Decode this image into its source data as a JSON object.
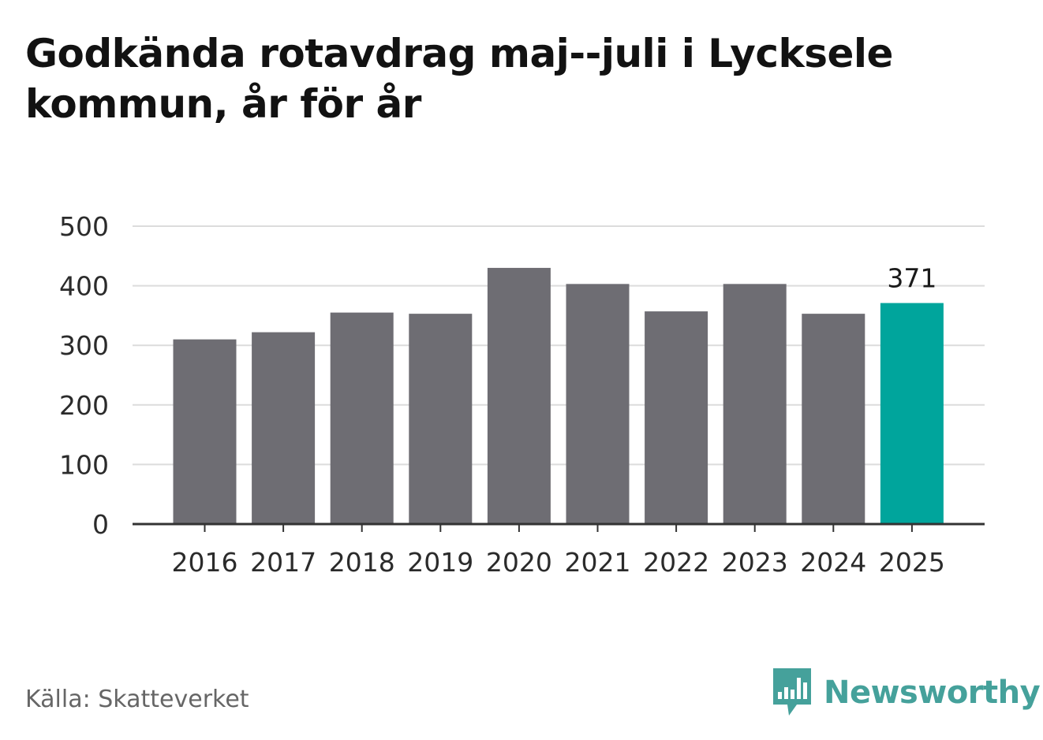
{
  "title": "Godkända rotavdrag maj--juli i Lycksele kommun, år för år",
  "source": "Källa: Skatteverket",
  "brand": {
    "name": "Newsworthy",
    "icon": "newsworthy-logo-icon",
    "color": "#45a19b"
  },
  "colors": {
    "bar": "#6e6d73",
    "highlight": "#00a59c",
    "grid": "#dcdcdc",
    "axis": "#333333"
  },
  "chart_data": {
    "type": "bar",
    "title": "Godkända rotavdrag maj--juli i Lycksele kommun, år för år",
    "xlabel": "",
    "ylabel": "",
    "categories": [
      "2016",
      "2017",
      "2018",
      "2019",
      "2020",
      "2021",
      "2022",
      "2023",
      "2024",
      "2025"
    ],
    "values": [
      310,
      322,
      355,
      353,
      430,
      403,
      357,
      403,
      353,
      371
    ],
    "ylim": [
      0,
      500
    ],
    "yticks": [
      "0",
      "100",
      "200",
      "300",
      "400",
      "500"
    ],
    "highlight_index": 9,
    "data_labels": [
      {
        "index": 9,
        "text": "371"
      }
    ],
    "grid": true
  }
}
